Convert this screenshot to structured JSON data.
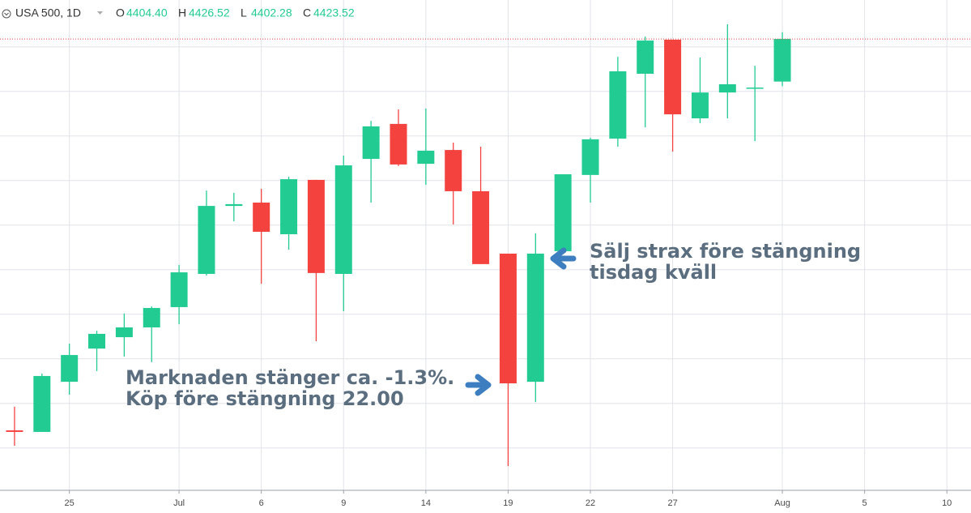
{
  "header": {
    "symbol": "USA 500, 1D",
    "ohlc": [
      {
        "key": "O",
        "value": "4404.40"
      },
      {
        "key": "H",
        "value": "4426.52"
      },
      {
        "key": "L",
        "value": "4402.28"
      },
      {
        "key": "C",
        "value": "4423.52"
      }
    ]
  },
  "chart_data": {
    "type": "candlestick",
    "open": [
      4247.9,
      4247.2,
      4269.7,
      4284.6,
      4289.7,
      4294.1,
      4303.2,
      4318.1,
      4348.6,
      4350.1,
      4335.9,
      4360.3,
      4318.1,
      4369.7,
      4385.4,
      4367.5,
      4373.7,
      4355.2,
      4327.2,
      4269.7,
      4328.3,
      4362.5,
      4378.8,
      4407.9,
      4423.2,
      4387.9,
      4399.5,
      4401.5,
      4404.4
    ],
    "high": [
      4258.5,
      4273.4,
      4286.8,
      4292.6,
      4300.3,
      4303.5,
      4322.1,
      4355.5,
      4354.5,
      4356.3,
      4361.7,
      4360.3,
      4371.2,
      4386.8,
      4391.9,
      4392.3,
      4377.0,
      4375.2,
      4327.2,
      4336.3,
      4362.8,
      4379.2,
      4415.5,
      4424.6,
      4423.2,
      4415.2,
      4430.1,
      4411.5,
      4426.52
    ],
    "low": [
      4241.0,
      4247.2,
      4263.9,
      4274.5,
      4281.0,
      4278.5,
      4295.5,
      4317.4,
      4341.7,
      4313.7,
      4329.0,
      4287.9,
      4301.4,
      4350.1,
      4366.5,
      4358.1,
      4340.3,
      4322.5,
      4231.9,
      4260.6,
      4328.3,
      4350.1,
      4375.2,
      4383.9,
      4373.0,
      4385.7,
      4387.9,
      4377.7,
      4402.28
    ],
    "close": [
      4247.2,
      4272.3,
      4281.7,
      4291.2,
      4294.1,
      4302.8,
      4318.8,
      4348.6,
      4349.4,
      4337.0,
      4360.6,
      4318.5,
      4366.8,
      4384.3,
      4367.2,
      4373.4,
      4355.2,
      4322.5,
      4269.0,
      4327.2,
      4362.8,
      4378.5,
      4409.0,
      4422.8,
      4389.7,
      4399.5,
      4403.2,
      4401.7,
      4423.52
    ],
    "up_color": "#22cb92",
    "down_color": "#f4433f",
    "xlim": [
      -0.53,
      34.88
    ],
    "xticks": [
      {
        "value": 2,
        "label": "25"
      },
      {
        "value": 6,
        "label": "Jul"
      },
      {
        "value": 9,
        "label": "6"
      },
      {
        "value": 12,
        "label": "9"
      },
      {
        "value": 15,
        "label": "14"
      },
      {
        "value": 18,
        "label": "19"
      },
      {
        "value": 21,
        "label": "22"
      },
      {
        "value": 24,
        "label": "27"
      },
      {
        "value": 28,
        "label": "Aug"
      },
      {
        "value": 31,
        "label": "5"
      },
      {
        "value": 34,
        "label": "10"
      }
    ],
    "ylim": [
      4221,
      4441
    ],
    "yticks": [
      4240,
      4260,
      4280,
      4300,
      4320,
      4340,
      4360,
      4380,
      4400,
      4420
    ],
    "grid": true,
    "annotations": [
      {
        "lines": [
          "Marknaden stänger ca. -1.3%.",
          "Köp före stängning 22.00"
        ]
      },
      {
        "lines": [
          "Sälj strax före stängning",
          "tisdag kväll"
        ]
      }
    ]
  }
}
